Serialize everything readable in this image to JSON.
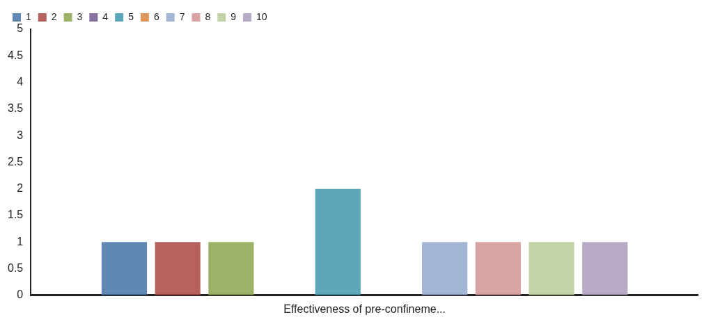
{
  "chart_data": {
    "type": "bar",
    "categories": [
      "Effectiveness of pre-confineme..."
    ],
    "series": [
      {
        "name": "1",
        "color": "#4572a7",
        "values": [
          1
        ]
      },
      {
        "name": "2",
        "color": "#aa4643",
        "values": [
          1
        ]
      },
      {
        "name": "3",
        "color": "#89a54e",
        "values": [
          1
        ]
      },
      {
        "name": "4",
        "color": "#71588f",
        "values": [
          0
        ]
      },
      {
        "name": "5",
        "color": "#4198af",
        "values": [
          2
        ]
      },
      {
        "name": "6",
        "color": "#db843d",
        "values": [
          0
        ]
      },
      {
        "name": "7",
        "color": "#93a9cf",
        "values": [
          1
        ]
      },
      {
        "name": "8",
        "color": "#d19392",
        "values": [
          1
        ]
      },
      {
        "name": "9",
        "color": "#b9cd96",
        "values": [
          1
        ]
      },
      {
        "name": "10",
        "color": "#a99bbd",
        "values": [
          1
        ]
      }
    ],
    "ylim": [
      0,
      5
    ],
    "yticks": [
      0,
      0.5,
      1,
      1.5,
      2,
      2.5,
      3,
      3.5,
      4,
      4.5,
      5
    ],
    "grid": false,
    "legend": "top left"
  }
}
